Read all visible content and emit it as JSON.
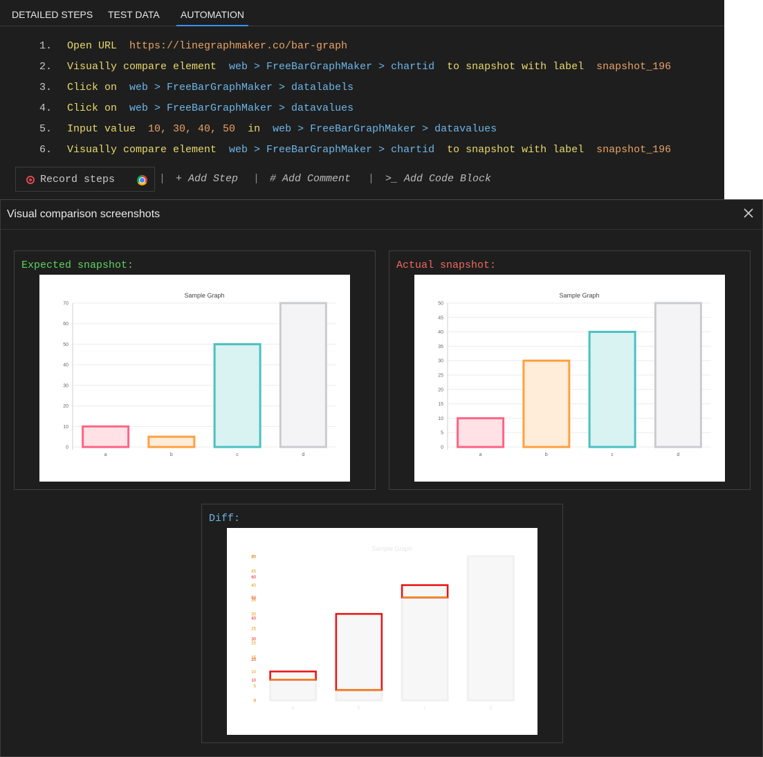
{
  "tabs": [
    {
      "label": "DETAILED STEPS",
      "active": false
    },
    {
      "label": "TEST DATA",
      "active": false
    },
    {
      "label": "AUTOMATION",
      "active": true
    }
  ],
  "steps": [
    {
      "num": "1.",
      "parts": [
        {
          "t": "Open URL  ",
          "c": "kw"
        },
        {
          "t": "https://linegraphmaker.co/bar-graph",
          "c": "str"
        }
      ]
    },
    {
      "num": "2.",
      "parts": [
        {
          "t": "Visually compare element  ",
          "c": "kw"
        },
        {
          "t": "web > FreeBarGraphMaker > chartid",
          "c": "path"
        },
        {
          "t": "  to snapshot with label  ",
          "c": "kw"
        },
        {
          "t": "snapshot_196",
          "c": "str"
        }
      ]
    },
    {
      "num": "3.",
      "parts": [
        {
          "t": "Click on  ",
          "c": "kw"
        },
        {
          "t": "web > FreeBarGraphMaker > datalabels",
          "c": "path"
        }
      ]
    },
    {
      "num": "4.",
      "parts": [
        {
          "t": "Click on  ",
          "c": "kw"
        },
        {
          "t": "web > FreeBarGraphMaker > datavalues",
          "c": "path"
        }
      ]
    },
    {
      "num": "5.",
      "parts": [
        {
          "t": "Input value  ",
          "c": "kw"
        },
        {
          "t": "10, 30, 40, 50",
          "c": "str"
        },
        {
          "t": "  in  ",
          "c": "kw"
        },
        {
          "t": "web > FreeBarGraphMaker > datavalues",
          "c": "path"
        }
      ]
    },
    {
      "num": "6.",
      "parts": [
        {
          "t": "Visually compare element  ",
          "c": "kw"
        },
        {
          "t": "web > FreeBarGraphMaker > chartid",
          "c": "path"
        },
        {
          "t": "  to snapshot with label  ",
          "c": "kw"
        },
        {
          "t": "snapshot_196",
          "c": "str"
        }
      ]
    }
  ],
  "toolbar": {
    "record_label": "Record steps",
    "sep": "|",
    "add_step": "+ Add Step",
    "add_comment": "# Add Comment",
    "add_code": ">_ Add Code Block"
  },
  "dialog": {
    "title": "Visual comparison screenshots",
    "expected_label": "Expected snapshot:",
    "actual_label": "Actual snapshot:",
    "diff_label": "Diff:"
  },
  "colors": {
    "expected_label": "#5fd35f",
    "actual_label": "#f06a5e",
    "diff_label": "#6cb6e8",
    "bar_fills": [
      "#ffe1e6",
      "#ffecd9",
      "#d9f2f2",
      "#f4f4f6"
    ],
    "bar_strokes": [
      "#ff6384",
      "#ffa040",
      "#4bc0c0",
      "#c9cbcf"
    ],
    "diff_red": "#ee1111"
  },
  "chart_data": [
    {
      "type": "bar",
      "title": "Sample Graph",
      "categories": [
        "a",
        "b",
        "c",
        "d"
      ],
      "values": [
        10,
        5,
        50,
        70
      ],
      "ylim": [
        0,
        70
      ],
      "yticks": [
        0,
        10,
        20,
        30,
        40,
        50,
        60,
        70
      ],
      "grid": true,
      "legend": false
    },
    {
      "type": "bar",
      "title": "Sample Graph",
      "categories": [
        "a",
        "b",
        "c",
        "d"
      ],
      "values": [
        10,
        30,
        40,
        50
      ],
      "ylim": [
        0,
        50
      ],
      "yticks": [
        0,
        5,
        10,
        15,
        20,
        25,
        30,
        35,
        40,
        45,
        50
      ],
      "grid": true,
      "legend": false
    }
  ]
}
